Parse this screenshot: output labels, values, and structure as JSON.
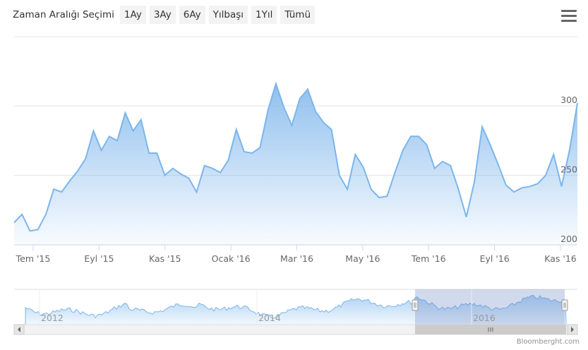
{
  "range_selector": {
    "label": "Zaman Aralığı Seçimi",
    "buttons": [
      "1Ay",
      "3Ay",
      "6Ay",
      "Yılbaşı",
      "1Yıl",
      "Tümü"
    ]
  },
  "credit": "Bloomberght.com",
  "chart_data": {
    "type": "area",
    "title": "",
    "xlabel": "",
    "ylabel": "",
    "ylim": [
      200,
      300
    ],
    "y_ticks": [
      200,
      250,
      300
    ],
    "x_tick_labels": [
      "Tem '15",
      "Eyl '15",
      "Kas '15",
      "Ocak '16",
      "Mar '16",
      "May '16",
      "Tem '16",
      "Eyl '16",
      "Kas '16"
    ],
    "grid": true,
    "legend": "none",
    "colors": {
      "line": "#7cb5ec",
      "fill_top": "#7cb5ec",
      "navigator_mask": "#b8d3f0"
    },
    "series": [
      {
        "x": [
          "2015-07-01",
          "2015-07-08",
          "2015-07-15",
          "2015-07-22",
          "2015-07-29",
          "2015-08-05",
          "2015-08-12",
          "2015-08-19",
          "2015-08-26",
          "2015-09-02",
          "2015-09-09",
          "2015-09-16",
          "2015-09-23",
          "2015-09-30",
          "2015-10-07",
          "2015-10-14",
          "2015-10-21",
          "2015-10-28",
          "2015-11-04",
          "2015-11-11",
          "2015-11-18",
          "2015-11-25",
          "2015-12-02",
          "2015-12-09",
          "2015-12-16",
          "2015-12-23",
          "2015-12-30",
          "2016-01-06",
          "2016-01-13",
          "2016-01-20",
          "2016-01-27",
          "2016-02-03",
          "2016-02-10",
          "2016-02-17",
          "2016-02-24",
          "2016-03-02",
          "2016-03-09",
          "2016-03-16",
          "2016-03-23",
          "2016-03-30",
          "2016-04-06",
          "2016-04-13",
          "2016-04-20",
          "2016-04-27",
          "2016-05-04",
          "2016-05-11",
          "2016-05-18",
          "2016-05-25",
          "2016-06-01",
          "2016-06-08",
          "2016-06-15",
          "2016-06-22",
          "2016-06-29",
          "2016-07-06",
          "2016-07-13",
          "2016-07-20",
          "2016-07-27",
          "2016-08-03",
          "2016-08-10",
          "2016-08-17",
          "2016-08-24",
          "2016-08-31",
          "2016-09-07",
          "2016-09-14",
          "2016-09-21",
          "2016-09-28",
          "2016-10-05",
          "2016-10-12",
          "2016-10-19",
          "2016-10-26",
          "2016-11-02",
          "2016-11-09"
        ],
        "y": [
          216,
          222,
          210,
          211,
          222,
          240,
          238,
          246,
          253,
          262,
          282,
          268,
          278,
          275,
          295,
          282,
          290,
          266,
          266,
          250,
          255,
          251,
          248,
          238,
          257,
          255,
          252,
          261,
          283,
          267,
          266,
          270,
          297,
          316,
          299,
          286,
          305,
          312,
          296,
          288,
          283,
          250,
          240,
          265,
          256,
          240,
          234,
          235,
          252,
          268,
          278,
          278,
          272,
          255,
          260,
          257,
          240,
          220,
          245,
          285,
          272,
          258,
          243,
          238,
          241,
          242,
          244,
          250,
          265,
          242,
          268,
          302
        ]
      }
    ],
    "navigator": {
      "tick_labels": [
        "2012",
        "2014",
        "2016"
      ],
      "selected_range": [
        "2015-07-01",
        "2016-11-09"
      ]
    }
  }
}
